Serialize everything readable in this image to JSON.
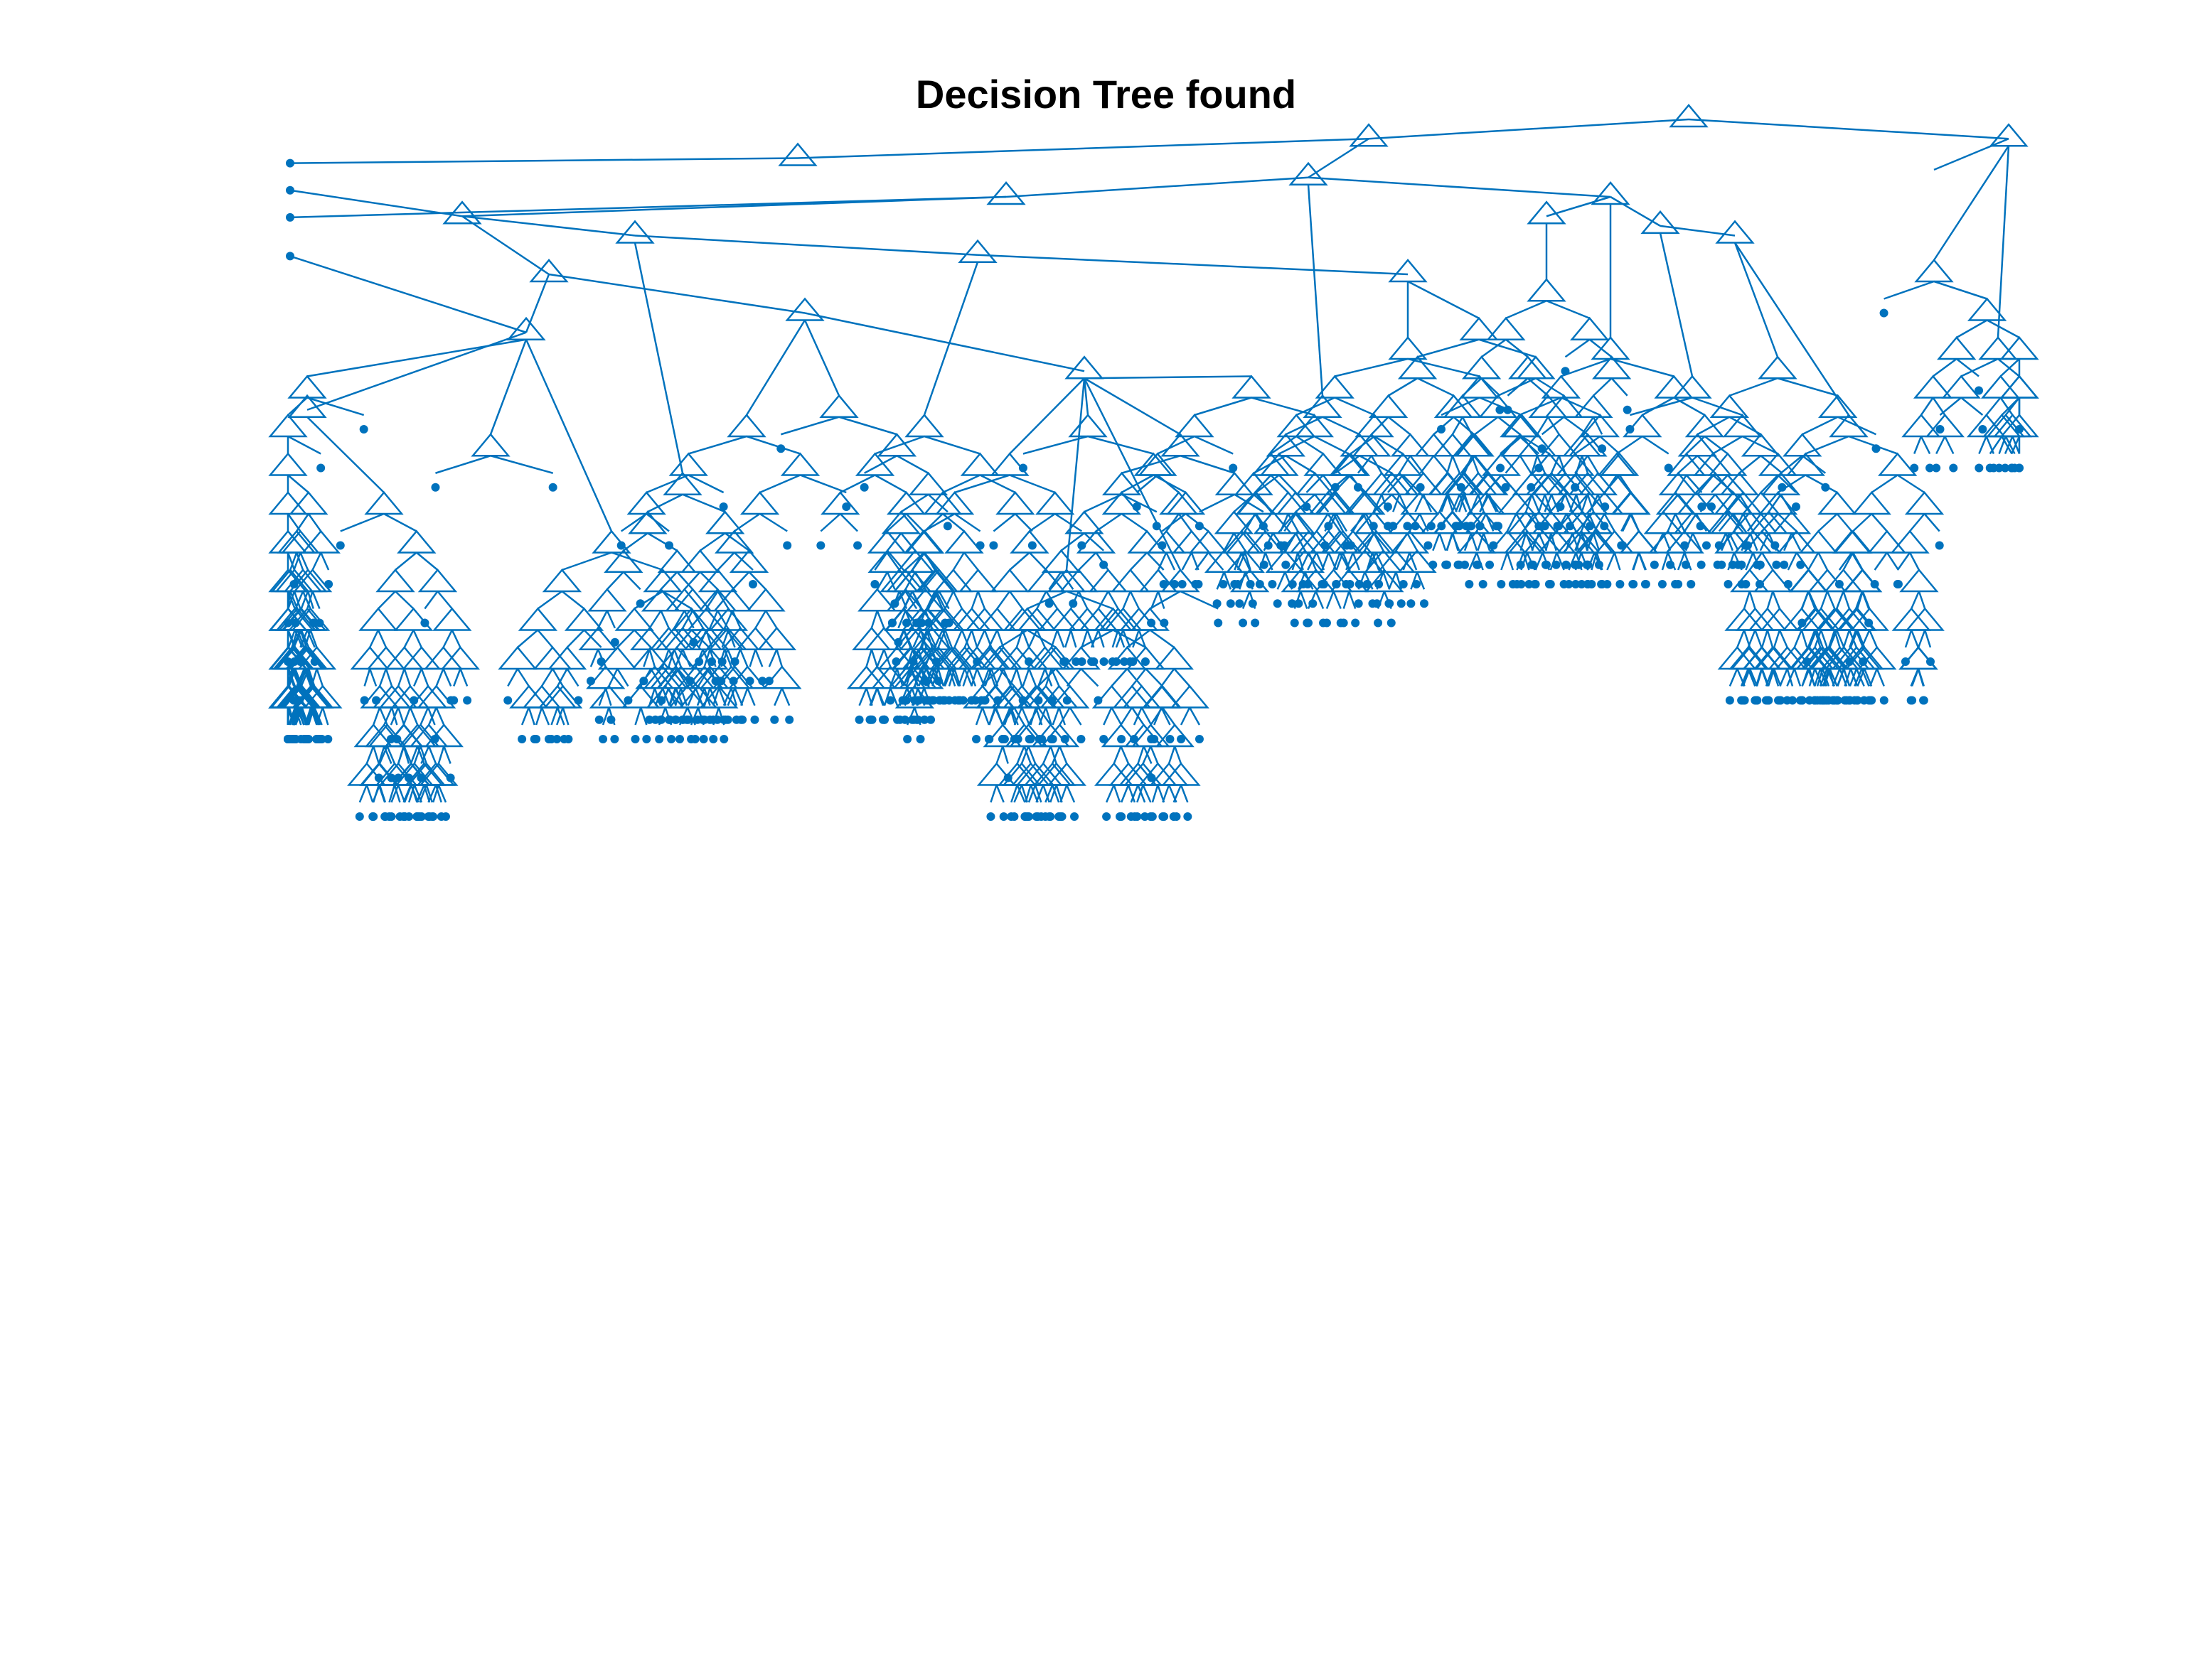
{
  "figure": {
    "title": "Decision Tree found"
  },
  "style": {
    "node_color": "#0072BD",
    "background": "#ffffff"
  },
  "tree": {
    "kind": "binary decision tree",
    "branch_node_marker": "triangle",
    "leaf_marker": "filled dot"
  }
}
